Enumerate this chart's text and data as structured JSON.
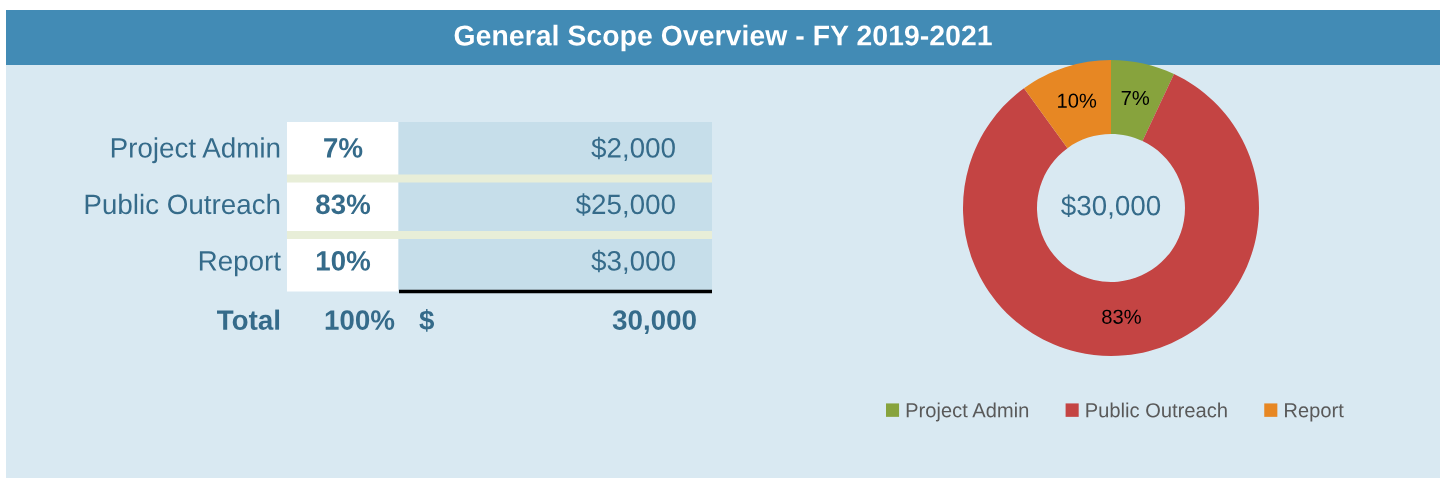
{
  "chart_data": [
    {
      "type": "other",
      "title": "General Scope Overview - FY 2019-2021",
      "categories": [
        "Project Admin",
        "Public Outreach",
        "Report"
      ],
      "annotations": [
        "7%",
        "$2,000",
        "83%",
        "$25,000",
        "10%",
        "$3,000",
        "Total",
        "100%",
        "$ 30,000"
      ]
    },
    {
      "type": "donut",
      "categories": [
        "Project Admin",
        "Public Outreach",
        "Report"
      ],
      "values": [
        7,
        83,
        10
      ],
      "colors": [
        "#87a33d",
        "#c44443",
        "#e78723"
      ],
      "value_labels": [
        "7%",
        "83%",
        "10%"
      ],
      "legend": "bottom",
      "annotations": [
        "$30,000"
      ]
    }
  ]
}
